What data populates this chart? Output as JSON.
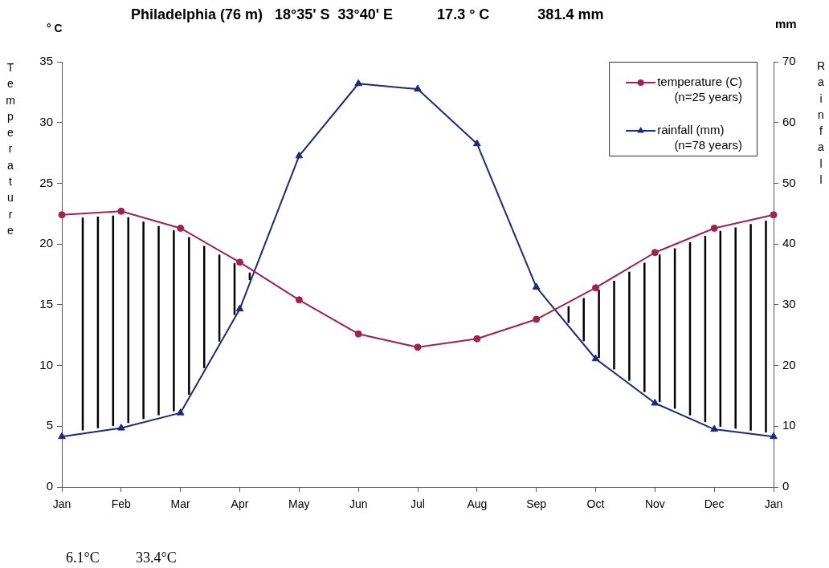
{
  "chart_data": {
    "type": "line",
    "title": "Philadelphia (76 m)   18°35' S  33°40' E           17.3 ° C            381.4 mm",
    "ylabel": "Temperature",
    "y2label": "Rainfall",
    "annotations": [
      "° C",
      "mm",
      "6.1°C",
      "33.4°C"
    ],
    "categories": [
      "Jan",
      "Feb",
      "Mar",
      "Apr",
      "May",
      "Jun",
      "Jul",
      "Aug",
      "Sep",
      "Oct",
      "Nov",
      "Dec",
      "Jan"
    ],
    "series": [
      {
        "name": "temperature (C)\n(n=25 years)",
        "color": "#a3214f",
        "marker": "circle",
        "values": [
          22.4,
          22.7,
          21.3,
          18.5,
          15.4,
          12.6,
          11.5,
          12.2,
          13.8,
          16.4,
          19.3,
          21.3,
          22.4
        ]
      },
      {
        "name": "rainfall (mm)\n(n=78 years)",
        "color": "#1b2a7a",
        "marker": "triangle",
        "axis": "y2",
        "values": [
          8.3,
          9.7,
          12.2,
          29.3,
          54.5,
          66.4,
          65.5,
          56.5,
          32.9,
          21.1,
          13.8,
          9.5,
          8.3
        ]
      }
    ],
    "ylim": [
      0,
      35
    ],
    "yticks": [
      0,
      5,
      10,
      15,
      20,
      25,
      30,
      35
    ],
    "y2lim": [
      0,
      70
    ],
    "y2ticks": [
      0,
      10,
      20,
      30,
      40,
      50,
      60,
      70
    ],
    "legend": "top right",
    "line_style": "solid"
  }
}
